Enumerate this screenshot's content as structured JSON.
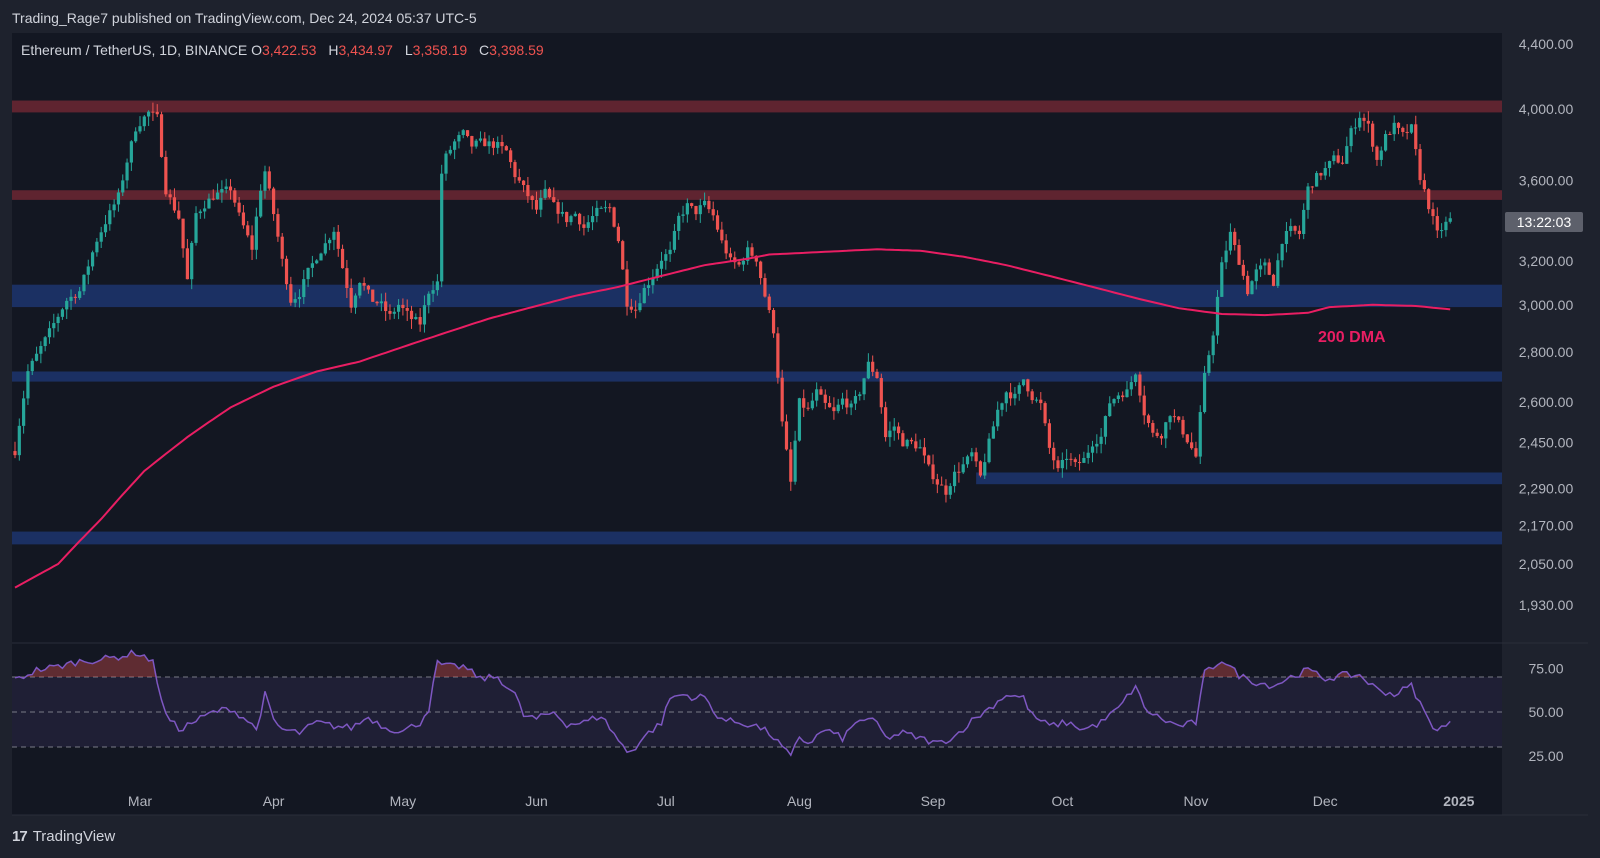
{
  "header": {
    "publisher": "Trading_Rage7 published on TradingView.com, Dec 24, 2024 05:37 UTC-5"
  },
  "legend": {
    "symbol": "Ethereum / TetherUS, 1D, BINANCE",
    "o_label": "O",
    "o_value": "3,422.53",
    "h_label": "H",
    "h_value": "3,434.97",
    "l_label": "L",
    "l_value": "3,358.19",
    "c_label": "C",
    "c_value": "3,398.59"
  },
  "countdown": "13:22:03",
  "ma_label": "200 DMA",
  "brand": {
    "logo": "17",
    "name": "TradingView"
  },
  "colors": {
    "background": "#131722",
    "pane_border": "#2a2e39",
    "up": "#26a69a",
    "down": "#ef5350",
    "ma": "#e91e63",
    "rsi": "#7e57c2",
    "support_zone": "#1f3a7a",
    "resistance_zone": "#7a2a35"
  },
  "chart_data": {
    "type": "candlestick",
    "price_axis": {
      "scale": "log",
      "ticks": [
        "4,400.00",
        "4,000.00",
        "3,600.00",
        "3,200.00",
        "3,000.00",
        "2,800.00",
        "2,600.00",
        "2,450.00",
        "2,290.00",
        "2,170.00",
        "2,050.00",
        "1,930.00"
      ],
      "tick_values": [
        4400,
        4000,
        3600,
        3200,
        3000,
        2800,
        2600,
        2450,
        2290,
        2170,
        2050,
        1930
      ]
    },
    "x_axis": {
      "labels": [
        "Mar",
        "Apr",
        "May",
        "Jun",
        "Jul",
        "Aug",
        "Sep",
        "Oct",
        "Nov",
        "Dec",
        "2025"
      ],
      "label_days": [
        29,
        60,
        90,
        121,
        151,
        182,
        213,
        243,
        274,
        304,
        335
      ]
    },
    "zones": [
      {
        "type": "resistance",
        "low": 3980,
        "high": 4050
      },
      {
        "type": "resistance",
        "low": 3500,
        "high": 3550
      },
      {
        "type": "support",
        "low": 2990,
        "high": 3090
      },
      {
        "type": "support",
        "low": 2680,
        "high": 2720
      },
      {
        "type": "support",
        "low": 2305,
        "high": 2345,
        "start_day": 223
      },
      {
        "type": "support",
        "low": 2110,
        "high": 2150
      }
    ],
    "key_points": [
      [
        0,
        2420
      ],
      [
        3,
        2720
      ],
      [
        7,
        2850
      ],
      [
        12,
        3020
      ],
      [
        15,
        3060
      ],
      [
        19,
        3300
      ],
      [
        24,
        3520
      ],
      [
        28,
        3890
      ],
      [
        31,
        3980
      ],
      [
        33,
        3950
      ],
      [
        35,
        3550
      ],
      [
        38,
        3410
      ],
      [
        40,
        3110
      ],
      [
        42,
        3430
      ],
      [
        46,
        3520
      ],
      [
        50,
        3560
      ],
      [
        52,
        3420
      ],
      [
        55,
        3260
      ],
      [
        57,
        3560
      ],
      [
        58,
        3650
      ],
      [
        60,
        3430
      ],
      [
        62,
        3200
      ],
      [
        64,
        3020
      ],
      [
        66,
        3050
      ],
      [
        68,
        3150
      ],
      [
        70,
        3220
      ],
      [
        72,
        3280
      ],
      [
        74,
        3350
      ],
      [
        76,
        3170
      ],
      [
        78,
        3000
      ],
      [
        80,
        3110
      ],
      [
        83,
        3020
      ],
      [
        85,
        3000
      ],
      [
        87,
        2950
      ],
      [
        89,
        3000
      ],
      [
        92,
        2940
      ],
      [
        94,
        2920
      ],
      [
        96,
        3060
      ],
      [
        98,
        3100
      ],
      [
        99,
        3640
      ],
      [
        100,
        3730
      ],
      [
        102,
        3810
      ],
      [
        104,
        3860
      ],
      [
        106,
        3790
      ],
      [
        108,
        3810
      ],
      [
        110,
        3800
      ],
      [
        112,
        3790
      ],
      [
        114,
        3760
      ],
      [
        116,
        3630
      ],
      [
        118,
        3560
      ],
      [
        121,
        3450
      ],
      [
        123,
        3540
      ],
      [
        125,
        3470
      ],
      [
        128,
        3400
      ],
      [
        130,
        3430
      ],
      [
        132,
        3360
      ],
      [
        135,
        3440
      ],
      [
        138,
        3460
      ],
      [
        140,
        3300
      ],
      [
        142,
        3010
      ],
      [
        144,
        2980
      ],
      [
        146,
        3070
      ],
      [
        148,
        3130
      ],
      [
        150,
        3210
      ],
      [
        152,
        3240
      ],
      [
        154,
        3410
      ],
      [
        156,
        3470
      ],
      [
        158,
        3440
      ],
      [
        160,
        3480
      ],
      [
        162,
        3420
      ],
      [
        164,
        3290
      ],
      [
        166,
        3200
      ],
      [
        168,
        3180
      ],
      [
        170,
        3250
      ],
      [
        172,
        3210
      ],
      [
        174,
        3040
      ],
      [
        176,
        2890
      ],
      [
        178,
        2520
      ],
      [
        180,
        2310
      ],
      [
        182,
        2600
      ],
      [
        184,
        2570
      ],
      [
        186,
        2640
      ],
      [
        188,
        2590
      ],
      [
        190,
        2560
      ],
      [
        192,
        2610
      ],
      [
        194,
        2580
      ],
      [
        196,
        2640
      ],
      [
        198,
        2750
      ],
      [
        200,
        2700
      ],
      [
        202,
        2470
      ],
      [
        204,
        2510
      ],
      [
        206,
        2450
      ],
      [
        208,
        2450
      ],
      [
        210,
        2430
      ],
      [
        212,
        2360
      ],
      [
        214,
        2310
      ],
      [
        216,
        2280
      ],
      [
        218,
        2340
      ],
      [
        220,
        2370
      ],
      [
        222,
        2410
      ],
      [
        224,
        2330
      ],
      [
        226,
        2450
      ],
      [
        228,
        2570
      ],
      [
        230,
        2640
      ],
      [
        232,
        2620
      ],
      [
        234,
        2690
      ],
      [
        236,
        2620
      ],
      [
        238,
        2590
      ],
      [
        240,
        2430
      ],
      [
        242,
        2350
      ],
      [
        244,
        2400
      ],
      [
        246,
        2370
      ],
      [
        248,
        2390
      ],
      [
        250,
        2450
      ],
      [
        252,
        2470
      ],
      [
        254,
        2600
      ],
      [
        256,
        2630
      ],
      [
        258,
        2640
      ],
      [
        260,
        2720
      ],
      [
        262,
        2560
      ],
      [
        264,
        2480
      ],
      [
        266,
        2480
      ],
      [
        268,
        2560
      ],
      [
        270,
        2520
      ],
      [
        272,
        2460
      ],
      [
        274,
        2400
      ],
      [
        276,
        2700
      ],
      [
        278,
        2880
      ],
      [
        280,
        3180
      ],
      [
        282,
        3330
      ],
      [
        284,
        3200
      ],
      [
        286,
        3060
      ],
      [
        288,
        3150
      ],
      [
        290,
        3180
      ],
      [
        292,
        3100
      ],
      [
        294,
        3300
      ],
      [
        296,
        3350
      ],
      [
        298,
        3330
      ],
      [
        300,
        3560
      ],
      [
        302,
        3620
      ],
      [
        304,
        3660
      ],
      [
        306,
        3720
      ],
      [
        308,
        3700
      ],
      [
        310,
        3870
      ],
      [
        312,
        3960
      ],
      [
        314,
        3900
      ],
      [
        316,
        3710
      ],
      [
        318,
        3840
      ],
      [
        320,
        3900
      ],
      [
        322,
        3850
      ],
      [
        324,
        3890
      ],
      [
        326,
        3620
      ],
      [
        328,
        3470
      ],
      [
        330,
        3330
      ],
      [
        332,
        3380
      ],
      [
        333,
        3398.59
      ]
    ],
    "ma200": [
      [
        0,
        1980
      ],
      [
        10,
        2050
      ],
      [
        20,
        2190
      ],
      [
        30,
        2350
      ],
      [
        40,
        2470
      ],
      [
        50,
        2580
      ],
      [
        60,
        2660
      ],
      [
        70,
        2720
      ],
      [
        80,
        2760
      ],
      [
        90,
        2820
      ],
      [
        100,
        2880
      ],
      [
        110,
        2940
      ],
      [
        120,
        2990
      ],
      [
        130,
        3040
      ],
      [
        140,
        3080
      ],
      [
        150,
        3130
      ],
      [
        160,
        3180
      ],
      [
        170,
        3210
      ],
      [
        175,
        3230
      ],
      [
        190,
        3245
      ],
      [
        200,
        3255
      ],
      [
        210,
        3248
      ],
      [
        220,
        3220
      ],
      [
        230,
        3180
      ],
      [
        240,
        3130
      ],
      [
        250,
        3080
      ],
      [
        260,
        3030
      ],
      [
        270,
        2985
      ],
      [
        280,
        2960
      ],
      [
        290,
        2955
      ],
      [
        300,
        2965
      ],
      [
        305,
        2990
      ],
      [
        315,
        3000
      ],
      [
        325,
        2995
      ],
      [
        333,
        2980
      ]
    ],
    "rsi": {
      "levels": [
        70,
        50,
        30
      ],
      "axis_ticks": [
        "75.00",
        "50.00",
        "25.00"
      ],
      "axis_values": [
        75,
        50,
        25
      ],
      "key_points": [
        [
          0,
          68
        ],
        [
          5,
          74
        ],
        [
          10,
          76
        ],
        [
          15,
          79
        ],
        [
          20,
          80
        ],
        [
          25,
          82
        ],
        [
          28,
          84
        ],
        [
          30,
          82
        ],
        [
          32,
          78
        ],
        [
          35,
          48
        ],
        [
          38,
          40
        ],
        [
          42,
          45
        ],
        [
          46,
          50
        ],
        [
          50,
          52
        ],
        [
          54,
          45
        ],
        [
          56,
          40
        ],
        [
          58,
          60
        ],
        [
          60,
          45
        ],
        [
          62,
          40
        ],
        [
          66,
          38
        ],
        [
          70,
          44
        ],
        [
          74,
          42
        ],
        [
          78,
          41
        ],
        [
          82,
          47
        ],
        [
          86,
          41
        ],
        [
          90,
          39
        ],
        [
          94,
          44
        ],
        [
          96,
          52
        ],
        [
          98,
          78
        ],
        [
          100,
          76
        ],
        [
          104,
          76
        ],
        [
          108,
          69
        ],
        [
          112,
          70
        ],
        [
          116,
          60
        ],
        [
          118,
          48
        ],
        [
          121,
          46
        ],
        [
          125,
          50
        ],
        [
          128,
          43
        ],
        [
          132,
          44
        ],
        [
          136,
          48
        ],
        [
          140,
          34
        ],
        [
          142,
          27
        ],
        [
          144,
          30
        ],
        [
          146,
          36
        ],
        [
          150,
          44
        ],
        [
          152,
          58
        ],
        [
          155,
          60
        ],
        [
          158,
          58
        ],
        [
          160,
          59
        ],
        [
          162,
          50
        ],
        [
          165,
          45
        ],
        [
          168,
          44
        ],
        [
          172,
          42
        ],
        [
          175,
          38
        ],
        [
          178,
          30
        ],
        [
          180,
          24
        ],
        [
          182,
          36
        ],
        [
          184,
          32
        ],
        [
          188,
          40
        ],
        [
          192,
          35
        ],
        [
          196,
          46
        ],
        [
          200,
          44
        ],
        [
          202,
          35
        ],
        [
          206,
          38
        ],
        [
          210,
          35
        ],
        [
          214,
          32
        ],
        [
          218,
          36
        ],
        [
          222,
          45
        ],
        [
          226,
          52
        ],
        [
          230,
          60
        ],
        [
          234,
          58
        ],
        [
          236,
          48
        ],
        [
          240,
          42
        ],
        [
          244,
          44
        ],
        [
          248,
          40
        ],
        [
          252,
          44
        ],
        [
          256,
          52
        ],
        [
          260,
          65
        ],
        [
          262,
          52
        ],
        [
          266,
          46
        ],
        [
          270,
          42
        ],
        [
          274,
          44
        ],
        [
          276,
          72
        ],
        [
          280,
          80
        ],
        [
          284,
          71
        ],
        [
          288,
          67
        ],
        [
          292,
          65
        ],
        [
          296,
          70
        ],
        [
          300,
          74
        ],
        [
          304,
          69
        ],
        [
          308,
          71
        ],
        [
          312,
          71
        ],
        [
          316,
          63
        ],
        [
          320,
          60
        ],
        [
          324,
          65
        ],
        [
          326,
          55
        ],
        [
          328,
          45
        ],
        [
          330,
          40
        ],
        [
          333,
          43
        ]
      ]
    }
  }
}
